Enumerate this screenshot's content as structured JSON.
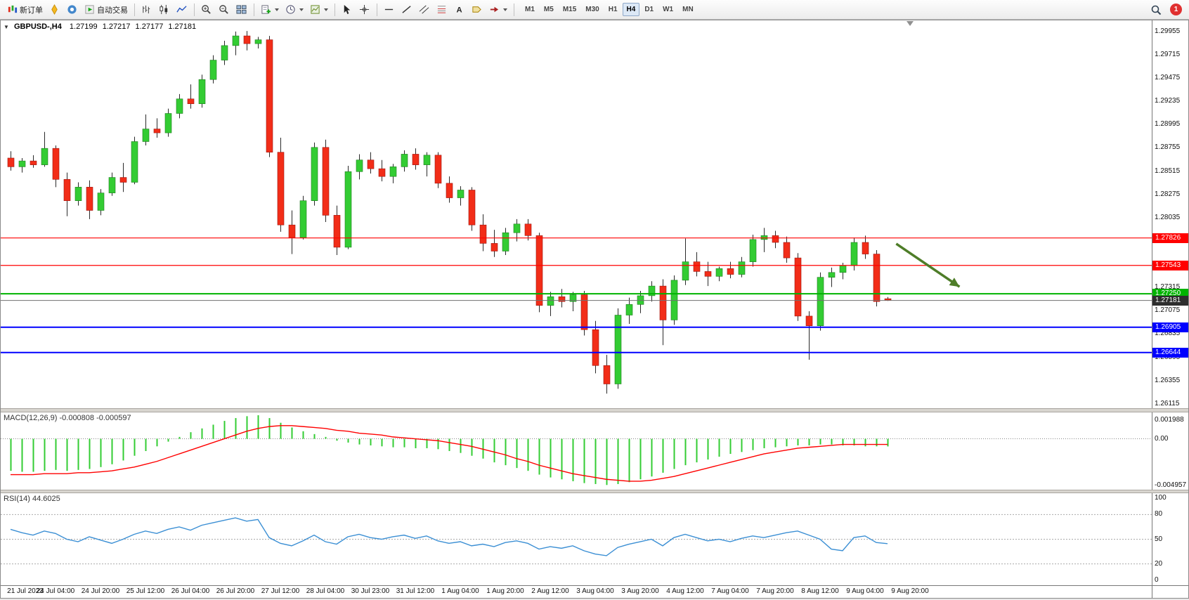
{
  "toolbar": {
    "new_order_label": "新订单",
    "autotrading_label": "自动交易",
    "timeframes": [
      "M1",
      "M5",
      "M15",
      "M30",
      "H1",
      "H4",
      "D1",
      "W1",
      "MN"
    ],
    "active_timeframe": "H4",
    "notification_count": "1"
  },
  "chart": {
    "symbol_title": "GBPUSD-,H4",
    "quote": {
      "open": "1.27199",
      "high": "1.27217",
      "low": "1.27177",
      "close": "1.27181"
    },
    "indicators": {
      "macd_label": "MACD(12,26,9)",
      "macd_values": "-0.000808 -0.000597",
      "rsi_label": "RSI(14)",
      "rsi_value": "44.6025"
    },
    "colors": {
      "candle_up": "#33cc33",
      "candle_down": "#f22d18",
      "wick": "#2a2a2a",
      "macd_bar": "#33cc33",
      "macd_signal": "#ff0000",
      "rsi_line": "#3b8fd4",
      "current_line": "#707070",
      "level_red": "#ff0000",
      "level_green": "#00b300",
      "level_blue": "#0000ff",
      "current_box": "#2e2e2e"
    }
  },
  "chart_data": [
    {
      "type": "candlestick",
      "title": "GBPUSD-,H4",
      "price_max": 1.3007,
      "price_min": 1.2607,
      "price_ticks": [
        "1.29955",
        "1.29715",
        "1.29475",
        "1.29235",
        "1.28995",
        "1.28755",
        "1.28515",
        "1.28275",
        "1.28035",
        "1.27795",
        "1.27555",
        "1.27315",
        "1.27075",
        "1.26835",
        "1.26595",
        "1.26355",
        "1.26115"
      ],
      "time_labels": [
        "21 Jul 2023",
        "24 Jul 04:00",
        "24 Jul 20:00",
        "25 Jul 12:00",
        "26 Jul 04:00",
        "26 Jul 20:00",
        "27 Jul 12:00",
        "28 Jul 04:00",
        "30 Jul 23:00",
        "31 Jul 12:00",
        "1 Aug 04:00",
        "1 Aug 20:00",
        "2 Aug 12:00",
        "3 Aug 04:00",
        "3 Aug 20:00",
        "4 Aug 12:00",
        "7 Aug 04:00",
        "7 Aug 20:00",
        "8 Aug 12:00",
        "9 Aug 04:00",
        "9 Aug 20:00"
      ],
      "hlines": [
        {
          "value": 1.27826,
          "color": "#ff0000",
          "width": 1.2
        },
        {
          "value": 1.27543,
          "color": "#ff0000",
          "width": 1.2
        },
        {
          "value": 1.2725,
          "color": "#00b300",
          "width": 2
        },
        {
          "value": 1.26905,
          "color": "#0000ff",
          "width": 2
        },
        {
          "value": 1.26644,
          "color": "#0000ff",
          "width": 2
        }
      ],
      "current_price": {
        "value": 1.27181,
        "color": "#2e2e2e"
      },
      "arrow": {
        "x1": 0.778,
        "y1": 0.576,
        "x2": 0.833,
        "y2": 0.687,
        "color": "#4e7d28"
      },
      "shift_marker_x": 0.79,
      "ohlc": [
        [
          1.2865,
          1.2872,
          1.2852,
          1.2856
        ],
        [
          1.2856,
          1.2865,
          1.285,
          1.2862
        ],
        [
          1.2862,
          1.2868,
          1.2855,
          1.2858
        ],
        [
          1.2858,
          1.2892,
          1.2856,
          1.2875
        ],
        [
          1.2875,
          1.2878,
          1.2835,
          1.2843
        ],
        [
          1.2843,
          1.285,
          1.2805,
          1.2821
        ],
        [
          1.2821,
          1.284,
          1.2816,
          1.2835
        ],
        [
          1.2835,
          1.2842,
          1.2802,
          1.2811
        ],
        [
          1.2811,
          1.2833,
          1.2806,
          1.2829
        ],
        [
          1.2829,
          1.285,
          1.2826,
          1.2845
        ],
        [
          1.2845,
          1.286,
          1.283,
          1.284
        ],
        [
          1.284,
          1.2887,
          1.2838,
          1.2882
        ],
        [
          1.2882,
          1.291,
          1.2878,
          1.2895
        ],
        [
          1.2895,
          1.2906,
          1.2886,
          1.2891
        ],
        [
          1.2891,
          1.2916,
          1.2887,
          1.2911
        ],
        [
          1.2911,
          1.2931,
          1.2906,
          1.2926
        ],
        [
          1.2926,
          1.2941,
          1.2916,
          1.2921
        ],
        [
          1.2921,
          1.2951,
          1.2917,
          1.2946
        ],
        [
          1.2946,
          1.2971,
          1.2942,
          1.2966
        ],
        [
          1.2966,
          1.2986,
          1.2961,
          1.2981
        ],
        [
          1.2981,
          1.29955,
          1.2971,
          1.2991
        ],
        [
          1.2991,
          1.2996,
          1.2976,
          1.2983
        ],
        [
          1.2983,
          1.299,
          1.2978,
          1.2987
        ],
        [
          1.2987,
          1.2991,
          1.2866,
          1.2871
        ],
        [
          1.2871,
          1.2886,
          1.2789,
          1.2796
        ],
        [
          1.2796,
          1.2811,
          1.2766,
          1.2783
        ],
        [
          1.2783,
          1.2826,
          1.2781,
          1.2821
        ],
        [
          1.2821,
          1.2881,
          1.2816,
          1.2876
        ],
        [
          1.2876,
          1.2884,
          1.2799,
          1.2806
        ],
        [
          1.2806,
          1.2816,
          1.2765,
          1.2773
        ],
        [
          1.2773,
          1.2857,
          1.2771,
          1.2851
        ],
        [
          1.2851,
          1.2869,
          1.2843,
          1.2863
        ],
        [
          1.2863,
          1.2871,
          1.2849,
          1.2854
        ],
        [
          1.2854,
          1.2863,
          1.2841,
          1.2846
        ],
        [
          1.2846,
          1.2859,
          1.2839,
          1.2856
        ],
        [
          1.2856,
          1.2873,
          1.2851,
          1.2869
        ],
        [
          1.2869,
          1.2875,
          1.2853,
          1.2858
        ],
        [
          1.2858,
          1.2871,
          1.2846,
          1.2868
        ],
        [
          1.2868,
          1.2871,
          1.2834,
          1.2839
        ],
        [
          1.2839,
          1.2846,
          1.2819,
          1.2824
        ],
        [
          1.2824,
          1.2836,
          1.2816,
          1.2832
        ],
        [
          1.2832,
          1.2835,
          1.279,
          1.2796
        ],
        [
          1.2796,
          1.2807,
          1.2769,
          1.2777
        ],
        [
          1.2777,
          1.2791,
          1.2763,
          1.2769
        ],
        [
          1.2769,
          1.2793,
          1.2765,
          1.2788
        ],
        [
          1.2788,
          1.2802,
          1.2779,
          1.2797
        ],
        [
          1.2797,
          1.2802,
          1.278,
          1.2785
        ],
        [
          1.2785,
          1.2788,
          1.2706,
          1.2713
        ],
        [
          1.2713,
          1.2727,
          1.2702,
          1.2722
        ],
        [
          1.2722,
          1.273,
          1.2711,
          1.2717
        ],
        [
          1.2717,
          1.2727,
          1.2707,
          1.2724
        ],
        [
          1.2724,
          1.2728,
          1.2682,
          1.2688
        ],
        [
          1.2688,
          1.2697,
          1.2643,
          1.2651
        ],
        [
          1.2651,
          1.2662,
          1.2622,
          1.2632
        ],
        [
          1.2632,
          1.271,
          1.2627,
          1.2703
        ],
        [
          1.2703,
          1.2721,
          1.2694,
          1.2714
        ],
        [
          1.2714,
          1.2728,
          1.2705,
          1.2723
        ],
        [
          1.2723,
          1.2738,
          1.2717,
          1.2733
        ],
        [
          1.2733,
          1.274,
          1.2672,
          1.2698
        ],
        [
          1.2698,
          1.2744,
          1.2693,
          1.2739
        ],
        [
          1.2739,
          1.2782,
          1.2734,
          1.2758
        ],
        [
          1.2758,
          1.2768,
          1.2743,
          1.2748
        ],
        [
          1.2748,
          1.2758,
          1.2733,
          1.2743
        ],
        [
          1.2743,
          1.2753,
          1.2738,
          1.2751
        ],
        [
          1.2751,
          1.2758,
          1.2741,
          1.2745
        ],
        [
          1.2745,
          1.2763,
          1.2742,
          1.2758
        ],
        [
          1.2758,
          1.2786,
          1.2753,
          1.2781
        ],
        [
          1.2781,
          1.2793,
          1.2768,
          1.2785
        ],
        [
          1.2785,
          1.279,
          1.2772,
          1.2778
        ],
        [
          1.2778,
          1.2784,
          1.2757,
          1.2762
        ],
        [
          1.2762,
          1.2767,
          1.2697,
          1.2702
        ],
        [
          1.2702,
          1.2707,
          1.2657,
          1.2692
        ],
        [
          1.2692,
          1.2747,
          1.2687,
          1.2742
        ],
        [
          1.2742,
          1.2752,
          1.2732,
          1.2747
        ],
        [
          1.2747,
          1.2757,
          1.274,
          1.2754
        ],
        [
          1.2754,
          1.2783,
          1.2749,
          1.2778
        ],
        [
          1.2778,
          1.2785,
          1.2761,
          1.2766
        ],
        [
          1.2766,
          1.277,
          1.2712,
          1.2717
        ],
        [
          1.27199,
          1.27217,
          1.27177,
          1.27181
        ]
      ]
    },
    {
      "type": "bar",
      "name": "MACD(12,26,9)",
      "vmax": 0.0028,
      "vmin": -0.0054,
      "ticks": [
        {
          "value": 0.001988,
          "label": "0.001988"
        },
        {
          "value": 0,
          "label": "0.00"
        },
        {
          "value": -0.004957,
          "label": "-0.004957"
        }
      ],
      "values": [
        -0.0034,
        -0.0035,
        -0.0035,
        -0.0034,
        -0.0033,
        -0.0034,
        -0.0033,
        -0.0032,
        -0.003,
        -0.0027,
        -0.0023,
        -0.0018,
        -0.0013,
        -0.0008,
        -0.0003,
        0.0002,
        0.0007,
        0.0011,
        0.0015,
        0.0019,
        0.0022,
        0.0024,
        0.0025,
        0.0022,
        0.0017,
        0.0012,
        0.0008,
        0.0005,
        0.0002,
        -0.0002,
        -0.0004,
        -0.0006,
        -0.0007,
        -0.0008,
        -0.0009,
        -0.0009,
        -0.001,
        -0.001,
        -0.0011,
        -0.0013,
        -0.0015,
        -0.0018,
        -0.0021,
        -0.0025,
        -0.0028,
        -0.0031,
        -0.0034,
        -0.0038,
        -0.0041,
        -0.0043,
        -0.0045,
        -0.0047,
        -0.0048,
        -0.0049,
        -0.0048,
        -0.0046,
        -0.0043,
        -0.004,
        -0.0036,
        -0.0032,
        -0.0028,
        -0.0025,
        -0.0022,
        -0.0019,
        -0.0016,
        -0.0014,
        -0.0012,
        -0.001,
        -0.0009,
        -0.0008,
        -0.0007,
        -0.0007,
        -0.0006,
        -0.0006,
        -0.0007,
        -0.0007,
        -0.0008,
        -0.0008,
        -0.000808
      ],
      "signal": [
        -0.0038,
        -0.0038,
        -0.0038,
        -0.0037,
        -0.0037,
        -0.0037,
        -0.0036,
        -0.0036,
        -0.0035,
        -0.0034,
        -0.0032,
        -0.003,
        -0.0027,
        -0.0024,
        -0.002,
        -0.0016,
        -0.0012,
        -0.0008,
        -0.0004,
        0.0,
        0.0004,
        0.0008,
        0.0011,
        0.0013,
        0.0014,
        0.0014,
        0.0013,
        0.0012,
        0.0011,
        0.0009,
        0.0008,
        0.0006,
        0.0005,
        0.0004,
        0.0002,
        0.0001,
        0.0,
        -0.0001,
        -0.0002,
        -0.0004,
        -0.0006,
        -0.0008,
        -0.0011,
        -0.0014,
        -0.0017,
        -0.0021,
        -0.0024,
        -0.0028,
        -0.0031,
        -0.0034,
        -0.0037,
        -0.0039,
        -0.0041,
        -0.0043,
        -0.0044,
        -0.0045,
        -0.0045,
        -0.0044,
        -0.0042,
        -0.004,
        -0.0037,
        -0.0034,
        -0.0031,
        -0.0028,
        -0.0025,
        -0.0022,
        -0.0019,
        -0.0016,
        -0.0014,
        -0.0012,
        -0.001,
        -0.0009,
        -0.0008,
        -0.0007,
        -0.0006,
        -0.0006,
        -0.0006,
        -0.0006,
        -0.000597
      ]
    },
    {
      "type": "line",
      "name": "RSI(14)",
      "range": [
        0,
        100
      ],
      "ticks": [
        "100",
        "80",
        "50",
        "20",
        "0"
      ],
      "levels": [
        80,
        50,
        20
      ],
      "values": [
        62,
        58,
        55,
        60,
        57,
        50,
        47,
        53,
        49,
        45,
        50,
        56,
        60,
        57,
        62,
        65,
        61,
        67,
        70,
        73,
        76,
        72,
        74,
        52,
        45,
        42,
        48,
        55,
        47,
        44,
        53,
        56,
        52,
        50,
        53,
        55,
        51,
        54,
        48,
        45,
        47,
        42,
        44,
        41,
        46,
        48,
        45,
        38,
        41,
        39,
        42,
        36,
        32,
        30,
        40,
        44,
        47,
        50,
        42,
        52,
        56,
        52,
        48,
        50,
        47,
        51,
        54,
        52,
        55,
        58,
        60,
        55,
        50,
        38,
        36,
        52,
        54,
        46,
        44.6
      ]
    }
  ]
}
